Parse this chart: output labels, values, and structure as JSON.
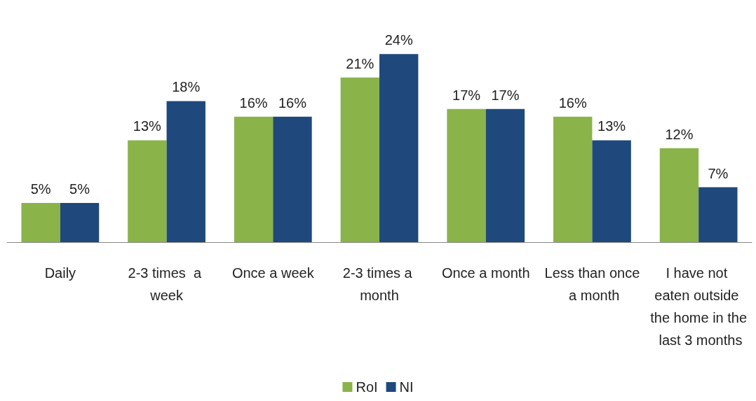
{
  "chart_data": {
    "type": "bar",
    "categories": [
      "Daily",
      "2-3 times  a week",
      "Once a week",
      "2-3 times a month",
      "Once a month",
      "Less than once a month",
      "I have not eaten outside the home in the last 3 months"
    ],
    "series": [
      {
        "name": "RoI",
        "color": "#8ab34a",
        "values": [
          5,
          13,
          16,
          21,
          17,
          16,
          12
        ],
        "value_labels": [
          "5%",
          "13%",
          "16%",
          "21%",
          "17%",
          "16%",
          "12%"
        ]
      },
      {
        "name": "NI",
        "color": "#1f497d",
        "values": [
          5,
          18,
          16,
          24,
          17,
          13,
          7
        ],
        "value_labels": [
          "5%",
          "18%",
          "16%",
          "24%",
          "17%",
          "13%",
          "7%"
        ]
      }
    ],
    "legend": "bottom"
  }
}
